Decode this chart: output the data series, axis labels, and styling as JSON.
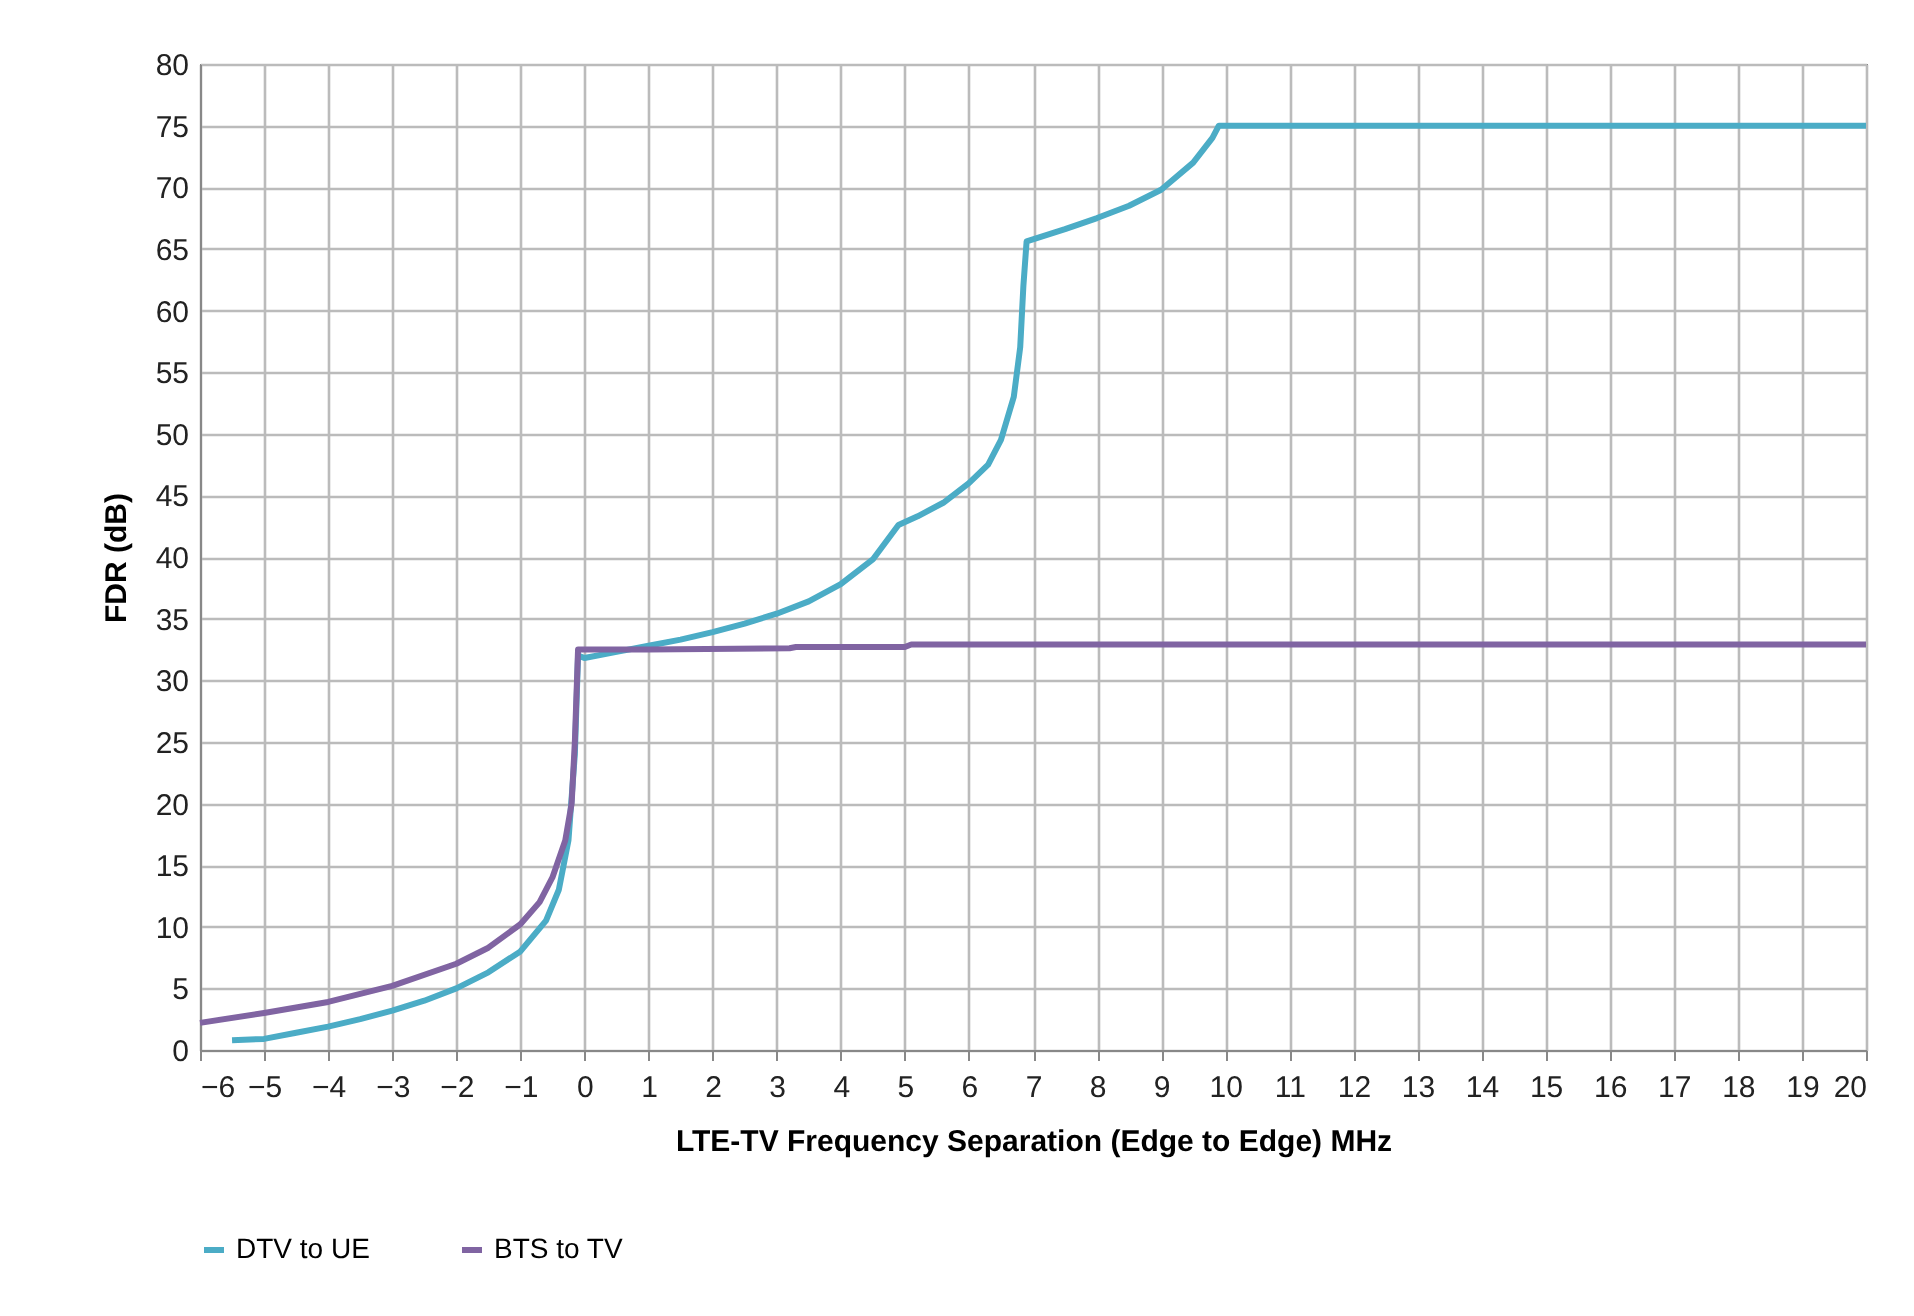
{
  "chart_data": {
    "type": "line",
    "xlabel": "LTE-TV Frequency Separation (Edge to Edge) MHz",
    "ylabel": "FDR (dB)",
    "xlim": [
      -6,
      20
    ],
    "ylim": [
      0,
      80
    ],
    "xticks": [
      -6,
      -5,
      -4,
      -3,
      -2,
      -1,
      0,
      1,
      2,
      3,
      4,
      5,
      6,
      7,
      8,
      9,
      10,
      11,
      12,
      13,
      14,
      15,
      16,
      17,
      18,
      19,
      20
    ],
    "yticks": [
      0,
      5,
      10,
      15,
      20,
      25,
      30,
      35,
      40,
      45,
      50,
      55,
      60,
      65,
      70,
      75,
      80
    ],
    "grid": true,
    "legend": "bottom",
    "marker": "none",
    "line_style": "solid",
    "series": [
      {
        "name": "DTV to UE",
        "color": "#4bacc6",
        "x": [
          -5.5,
          -5,
          -4.5,
          -4,
          -3.5,
          -3,
          -2.5,
          -2,
          -1.5,
          -1,
          -0.6,
          -0.4,
          -0.25,
          -0.15,
          -0.1,
          0,
          0.5,
          1,
          1.5,
          2,
          2.5,
          3,
          3.5,
          4,
          4.5,
          4.9,
          5.2,
          5.6,
          6,
          6.3,
          6.5,
          6.7,
          6.8,
          6.85,
          6.9,
          7.5,
          8,
          8.5,
          9,
          9.5,
          9.8,
          9.9,
          20
        ],
        "values": [
          0.8,
          0.9,
          1.4,
          1.9,
          2.5,
          3.2,
          4,
          5,
          6.3,
          8,
          10.5,
          13,
          17,
          24,
          32,
          31.8,
          32.3,
          32.8,
          33.3,
          33.9,
          34.6,
          35.4,
          36.4,
          37.8,
          39.8,
          42.6,
          43.3,
          44.4,
          46,
          47.5,
          49.5,
          53,
          57,
          62,
          65.6,
          66.6,
          67.5,
          68.5,
          69.8,
          72,
          74,
          75,
          75
        ]
      },
      {
        "name": "BTS to TV",
        "color": "#8064a2",
        "x": [
          -6,
          -5,
          -4,
          -3,
          -2,
          -1.5,
          -1,
          -0.7,
          -0.5,
          -0.3,
          -0.2,
          -0.15,
          -0.1,
          1,
          3.2,
          3.3,
          5,
          5.1,
          20
        ],
        "values": [
          2.2,
          3,
          3.9,
          5.2,
          7,
          8.3,
          10.2,
          12,
          14,
          17,
          20,
          25,
          32.5,
          32.5,
          32.6,
          32.7,
          32.7,
          32.9,
          32.9
        ]
      }
    ]
  }
}
